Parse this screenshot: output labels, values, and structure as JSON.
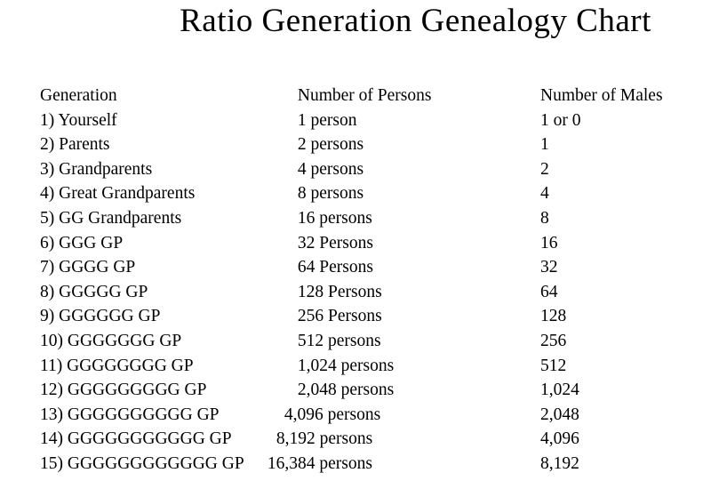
{
  "page": {
    "title": "Ratio Generation Genealogy Chart",
    "background_color": "#ffffff",
    "text_color": "#000000"
  },
  "table": {
    "columns": [
      "Generation",
      "Number of Persons",
      "Number of Males"
    ],
    "rows": [
      {
        "generation": "1) Yourself",
        "persons": "1 person",
        "males": "1 or 0"
      },
      {
        "generation": "2) Parents",
        "persons": "2 persons",
        "males": "1"
      },
      {
        "generation": "3) Grandparents",
        "persons": "4 persons",
        "males": "2"
      },
      {
        "generation": "4) Great Grandparents",
        "persons": "8 persons",
        "males": "4"
      },
      {
        "generation": "5) GG Grandparents",
        "persons": "16 persons",
        "males": "8"
      },
      {
        "generation": "6) GGG GP",
        "persons": "32 Persons",
        "males": "16"
      },
      {
        "generation": "7) GGGG GP",
        "persons": "64 Persons",
        "males": "32"
      },
      {
        "generation": "8) GGGGG GP",
        "persons": "128 Persons",
        "males": "64"
      },
      {
        "generation": "9) GGGGGG GP",
        "persons": "256 Persons",
        "males": "128"
      },
      {
        "generation": "10) GGGGGGG GP",
        "persons": "512 persons",
        "males": "256"
      },
      {
        "generation": "11) GGGGGGGG GP",
        "persons": "1,024 persons",
        "males": "512"
      },
      {
        "generation": "12) GGGGGGGGG GP",
        "persons": "2,048 persons",
        "males": "1,024"
      },
      {
        "generation": "13) GGGGGGGGGG GP",
        "persons": "4,096 persons",
        "males": "2,048"
      },
      {
        "generation": "14) GGGGGGGGGGG GP",
        "persons": "8,192 persons",
        "males": "4,096"
      },
      {
        "generation": "15) GGGGGGGGGGGG GP",
        "persons": "16,384 persons",
        "males": "8,192"
      }
    ]
  }
}
